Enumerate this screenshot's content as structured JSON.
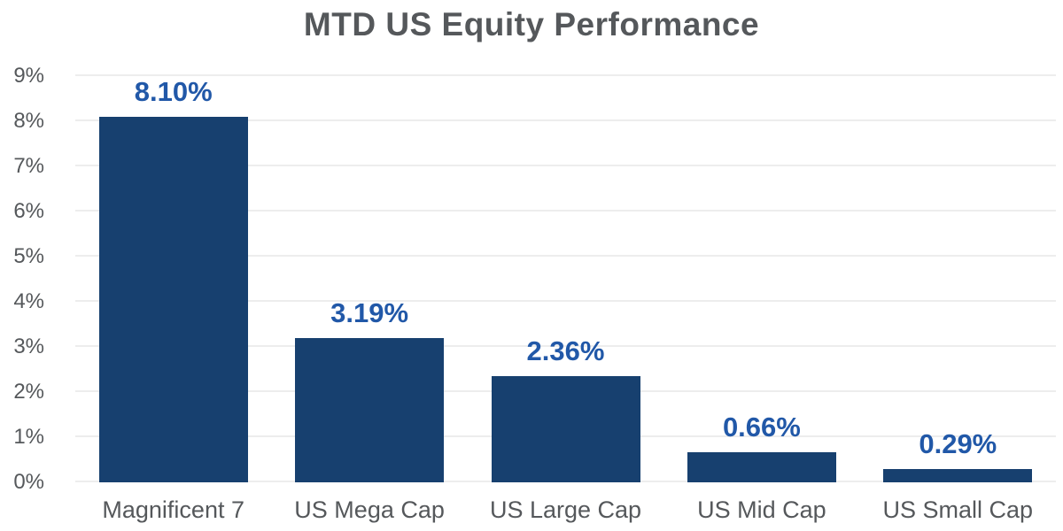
{
  "title": "MTD US Equity Performance",
  "colors": {
    "bar": "#17406F",
    "value_label": "#2158A8",
    "axis_text": "#55585B",
    "grid": "#EDEDED",
    "background": "#FFFFFF"
  },
  "chart_data": {
    "type": "bar",
    "title": "MTD US Equity Performance",
    "categories": [
      "Magnificent 7",
      "US Mega Cap",
      "US Large Cap",
      "US Mid Cap",
      "US Small Cap"
    ],
    "values": [
      8.1,
      3.19,
      2.36,
      0.66,
      0.29
    ],
    "value_labels": [
      "8.10%",
      "3.19%",
      "2.36%",
      "0.66%",
      "0.29%"
    ],
    "xlabel": "",
    "ylabel": "",
    "ylim": [
      0,
      9
    ],
    "ytick_step": 1,
    "ytick_labels": [
      "0%",
      "1%",
      "2%",
      "3%",
      "4%",
      "5%",
      "6%",
      "7%",
      "8%",
      "9%"
    ],
    "grid": "horizontal",
    "legend": "none",
    "bar_color": "#17406F",
    "data_label_color": "#2158A8"
  }
}
